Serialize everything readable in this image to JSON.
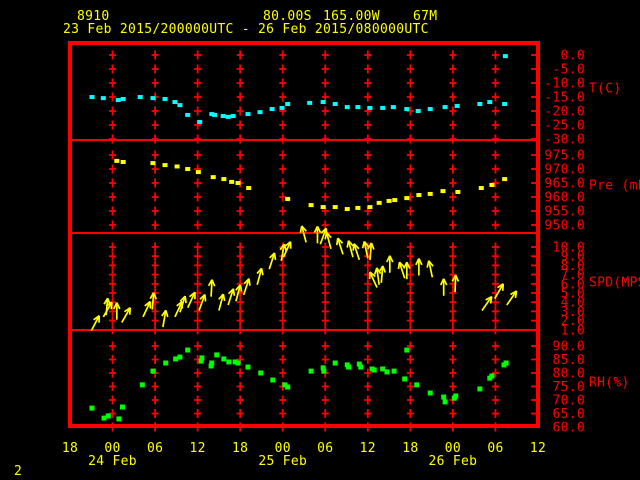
{
  "page_number": "2",
  "header": {
    "station_id": "8910",
    "latitude": "80.00S",
    "longitude": "165.00W",
    "elevation": "67M",
    "period": "23 Feb 2015/200000UTC - 26 Feb 2015/080000UTC"
  },
  "colors": {
    "background": "#000000",
    "grid": "#ff0000",
    "axis_text": "#ff0000",
    "header_text": "#ffff00",
    "temperature": "#00ffff",
    "pressure": "#ffff00",
    "wind": "#ffff00",
    "humidity": "#00ff00"
  },
  "x_axis": {
    "start": "23 Feb 2015 18UTC",
    "total_hours": 66,
    "tick_interval_hours": 6,
    "hour_labels": [
      "18",
      "00",
      "06",
      "12",
      "18",
      "00",
      "06",
      "12",
      "18",
      "00",
      "06",
      "12"
    ],
    "date_labels": [
      {
        "label": "24 Feb",
        "hour": 6
      },
      {
        "label": "25 Feb",
        "hour": 30
      },
      {
        "label": "26 Feb",
        "hour": 54
      }
    ]
  },
  "chart_data": [
    {
      "type": "scatter",
      "name": "temperature",
      "ylabel": "T(C)",
      "yticks": [
        0.0,
        -5.0,
        -10.0,
        -15.0,
        -20.0,
        -25.0,
        -30.0
      ],
      "ylim": [
        -30,
        0
      ],
      "color": "#00ffff",
      "points": [
        [
          3.1,
          -15.0
        ],
        [
          4.7,
          -15.4
        ],
        [
          6.8,
          -16.1
        ],
        [
          7.5,
          -15.7
        ],
        [
          9.9,
          -15.0
        ],
        [
          11.7,
          -15.4
        ],
        [
          13.4,
          -15.7
        ],
        [
          14.8,
          -16.8
        ],
        [
          15.5,
          -17.9
        ],
        [
          16.6,
          -21.4
        ],
        [
          18.3,
          -23.9
        ],
        [
          20.0,
          -21.1
        ],
        [
          20.4,
          -21.4
        ],
        [
          21.6,
          -21.8
        ],
        [
          22.3,
          -22.1
        ],
        [
          23.0,
          -21.8
        ],
        [
          25.1,
          -21.1
        ],
        [
          26.8,
          -20.4
        ],
        [
          28.5,
          -19.3
        ],
        [
          29.9,
          -18.9
        ],
        [
          30.7,
          -17.5
        ],
        [
          33.8,
          -17.1
        ],
        [
          35.7,
          -16.8
        ],
        [
          37.4,
          -17.5
        ],
        [
          39.1,
          -18.6
        ],
        [
          40.6,
          -18.6
        ],
        [
          42.3,
          -18.9
        ],
        [
          44.1,
          -18.9
        ],
        [
          45.6,
          -18.6
        ],
        [
          47.5,
          -19.3
        ],
        [
          49.1,
          -20.0
        ],
        [
          50.8,
          -19.3
        ],
        [
          52.9,
          -18.6
        ],
        [
          54.6,
          -18.2
        ],
        [
          57.8,
          -17.5
        ],
        [
          59.2,
          -16.8
        ],
        [
          61.3,
          -17.5
        ],
        [
          61.4,
          -0.4
        ]
      ]
    },
    {
      "type": "scatter",
      "name": "pressure",
      "ylabel": "Pre (mb)",
      "yticks": [
        975.0,
        970.0,
        965.0,
        960.0,
        955.0,
        950.0
      ],
      "ylim": [
        950,
        975
      ],
      "color": "#ffff00",
      "points": [
        [
          6.6,
          972.9
        ],
        [
          7.5,
          972.5
        ],
        [
          11.7,
          972.1
        ],
        [
          13.4,
          971.4
        ],
        [
          15.1,
          970.9
        ],
        [
          16.6,
          970.0
        ],
        [
          18.1,
          968.9
        ],
        [
          20.2,
          967.1
        ],
        [
          21.7,
          966.4
        ],
        [
          22.8,
          965.4
        ],
        [
          23.7,
          965.0
        ],
        [
          25.2,
          963.2
        ],
        [
          30.7,
          959.3
        ],
        [
          34.0,
          957.1
        ],
        [
          35.7,
          956.4
        ],
        [
          37.4,
          956.4
        ],
        [
          39.1,
          955.7
        ],
        [
          40.6,
          956.1
        ],
        [
          42.3,
          956.4
        ],
        [
          43.6,
          957.9
        ],
        [
          45.0,
          958.6
        ],
        [
          45.8,
          958.9
        ],
        [
          47.5,
          959.6
        ],
        [
          49.2,
          960.7
        ],
        [
          50.8,
          961.1
        ],
        [
          52.6,
          962.1
        ],
        [
          54.7,
          961.8
        ],
        [
          58.0,
          963.2
        ],
        [
          59.5,
          964.3
        ],
        [
          61.3,
          966.4
        ]
      ]
    },
    {
      "type": "wind_arrows",
      "name": "wind_speed",
      "ylabel": "SPD(MPS)",
      "yticks": [
        10.0,
        9.0,
        8.0,
        7.0,
        6.0,
        5.0,
        4.0,
        3.0,
        2.0,
        1.0
      ],
      "ylim": [
        1,
        10
      ],
      "color": "#ffff00",
      "points_format": [
        "hours_from_start",
        "speed_mps",
        "arrow_direction_deg_cw_from_up"
      ],
      "points": [
        [
          3.0,
          0.9,
          28
        ],
        [
          4.7,
          2.4,
          30
        ],
        [
          5.1,
          2.6,
          5
        ],
        [
          6.6,
          2.1,
          0
        ],
        [
          7.3,
          1.8,
          30
        ],
        [
          10.3,
          2.4,
          25
        ],
        [
          11.6,
          3.2,
          5
        ],
        [
          13.1,
          1.3,
          10
        ],
        [
          14.8,
          2.4,
          25
        ],
        [
          15.5,
          2.9,
          18
        ],
        [
          16.6,
          3.4,
          25
        ],
        [
          18.2,
          3.1,
          20
        ],
        [
          19.9,
          4.6,
          3
        ],
        [
          21.0,
          3.1,
          15
        ],
        [
          22.3,
          3.7,
          18
        ],
        [
          23.4,
          4.1,
          15
        ],
        [
          24.5,
          4.8,
          18
        ],
        [
          26.4,
          5.9,
          15
        ],
        [
          28.1,
          7.6,
          18
        ],
        [
          29.8,
          8.5,
          10
        ],
        [
          30.1,
          8.9,
          25
        ],
        [
          33.3,
          10.5,
          -15
        ],
        [
          34.9,
          10.4,
          0
        ],
        [
          35.3,
          10.3,
          20
        ],
        [
          36.8,
          9.8,
          -15
        ],
        [
          38.5,
          9.2,
          -18
        ],
        [
          39.9,
          8.9,
          -15
        ],
        [
          40.8,
          8.6,
          -18
        ],
        [
          42.0,
          8.8,
          -12
        ],
        [
          42.3,
          8.6,
          5
        ],
        [
          43.3,
          5.6,
          -25
        ],
        [
          43.6,
          5.9,
          -8
        ],
        [
          43.9,
          6.1,
          5
        ],
        [
          45.1,
          7.2,
          0
        ],
        [
          47.2,
          6.6,
          -18
        ],
        [
          47.5,
          6.5,
          0
        ],
        [
          49.2,
          6.9,
          0
        ],
        [
          51.1,
          6.7,
          -12
        ],
        [
          52.7,
          4.7,
          0
        ],
        [
          54.3,
          5.1,
          2
        ],
        [
          58.1,
          3.1,
          35
        ],
        [
          59.9,
          4.4,
          30
        ],
        [
          61.6,
          3.7,
          35
        ]
      ]
    },
    {
      "type": "scatter",
      "name": "relative_humidity",
      "ylabel": "RH(%)",
      "yticks": [
        90.0,
        85.0,
        80.0,
        75.0,
        70.0,
        65.0,
        60.0
      ],
      "ylim": [
        60,
        90
      ],
      "color": "#00ff00",
      "points": [
        [
          3.1,
          67.0
        ],
        [
          4.8,
          63.3
        ],
        [
          5.4,
          64.1
        ],
        [
          6.9,
          63.0
        ],
        [
          7.4,
          67.4
        ],
        [
          10.2,
          75.6
        ],
        [
          11.7,
          80.7
        ],
        [
          13.5,
          83.7
        ],
        [
          14.9,
          85.2
        ],
        [
          15.5,
          85.9
        ],
        [
          16.6,
          88.5
        ],
        [
          18.5,
          84.4
        ],
        [
          18.6,
          85.6
        ],
        [
          19.9,
          82.6
        ],
        [
          20.0,
          83.7
        ],
        [
          20.7,
          86.7
        ],
        [
          21.7,
          85.2
        ],
        [
          22.4,
          84.1
        ],
        [
          23.3,
          84.1
        ],
        [
          23.7,
          83.7
        ],
        [
          25.1,
          82.2
        ],
        [
          26.9,
          80.0
        ],
        [
          28.6,
          77.4
        ],
        [
          30.3,
          75.6
        ],
        [
          30.7,
          74.8
        ],
        [
          34.0,
          80.7
        ],
        [
          35.7,
          81.9
        ],
        [
          35.8,
          80.7
        ],
        [
          37.4,
          83.7
        ],
        [
          39.1,
          83.0
        ],
        [
          39.3,
          82.2
        ],
        [
          40.8,
          83.3
        ],
        [
          41.0,
          82.2
        ],
        [
          42.6,
          81.5
        ],
        [
          42.9,
          81.1
        ],
        [
          44.1,
          81.5
        ],
        [
          44.7,
          80.4
        ],
        [
          45.7,
          80.7
        ],
        [
          47.2,
          77.8
        ],
        [
          47.5,
          88.5
        ],
        [
          48.9,
          75.6
        ],
        [
          50.8,
          72.6
        ],
        [
          52.7,
          71.1
        ],
        [
          52.9,
          69.3
        ],
        [
          54.2,
          70.7
        ],
        [
          54.4,
          71.5
        ],
        [
          57.8,
          74.1
        ],
        [
          59.2,
          78.1
        ],
        [
          59.5,
          78.9
        ],
        [
          61.2,
          83.0
        ],
        [
          61.5,
          83.7
        ]
      ]
    }
  ]
}
